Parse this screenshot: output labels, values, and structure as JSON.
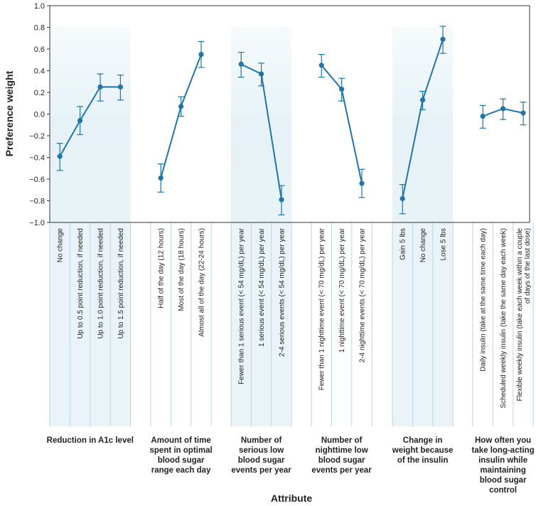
{
  "chart_data": {
    "type": "line",
    "title": "",
    "xlabel": "Attribute",
    "ylabel": "Preference weight",
    "ylim": [
      -1.0,
      1.0
    ],
    "yticks": [
      "1.0",
      "0.8",
      "0.6",
      "0.4",
      "0.2",
      "0.0",
      "−0.2",
      "−0.4",
      "−0.6",
      "−0.8",
      "−1.0"
    ],
    "ytick_values": [
      1.0,
      0.8,
      0.6,
      0.4,
      0.2,
      0.0,
      -0.2,
      -0.4,
      -0.6,
      -0.8,
      -1.0
    ],
    "colors": {
      "line": "#1f74a8",
      "band": "#e6f2f7"
    },
    "groups": [
      {
        "attribute_lines": [
          "Reduction in A1c level"
        ],
        "shaded": true,
        "levels": [
          {
            "label": "No change",
            "value": -0.39,
            "lower": -0.52,
            "upper": -0.27
          },
          {
            "label": "Up to 0.5 point reduction, if needed",
            "value": -0.06,
            "lower": -0.19,
            "upper": 0.07
          },
          {
            "label": "Up to 1.0 point reduction, if needed",
            "value": 0.25,
            "lower": 0.12,
            "upper": 0.37
          },
          {
            "label": "Up to 1.5 point reduction, if needed",
            "value": 0.25,
            "lower": 0.13,
            "upper": 0.36
          }
        ]
      },
      {
        "attribute_lines": [
          "Amount of time",
          "spent in optimal",
          "blood sugar",
          "range each day"
        ],
        "shaded": false,
        "levels": [
          {
            "label": "Half of the day (12 hours)",
            "value": -0.59,
            "lower": -0.72,
            "upper": -0.46
          },
          {
            "label": "Most of the day (18 hours)",
            "value": 0.07,
            "lower": -0.02,
            "upper": 0.16
          },
          {
            "label": "Almost all of the day (22-24 hours)",
            "value": 0.55,
            "lower": 0.43,
            "upper": 0.67
          }
        ]
      },
      {
        "attribute_lines": [
          "Number of",
          "serious low",
          "blood sugar",
          "events per year"
        ],
        "shaded": true,
        "levels": [
          {
            "label": "Fewer than 1 serious event (< 54 mg/dL) per year",
            "value": 0.46,
            "lower": 0.34,
            "upper": 0.57
          },
          {
            "label": "1 serious event (< 54 mg/dL) per year",
            "value": 0.37,
            "lower": 0.26,
            "upper": 0.47
          },
          {
            "label": "2-4 serious events (< 54 mg/dL) per year",
            "value": -0.79,
            "lower": -0.93,
            "upper": -0.66
          }
        ]
      },
      {
        "attribute_lines": [
          "Number of",
          "nighttime low",
          "blood sugar",
          "events per year"
        ],
        "shaded": false,
        "levels": [
          {
            "label": "Fewer than 1 nighttime event (< 70 mg/dL) per year",
            "value": 0.45,
            "lower": 0.34,
            "upper": 0.55
          },
          {
            "label": "1 nighttime event (< 70 mg/dL) per year",
            "value": 0.23,
            "lower": 0.12,
            "upper": 0.33
          },
          {
            "label": "2-4 nighttime events (< 70 mg/dL) per year",
            "value": -0.64,
            "lower": -0.77,
            "upper": -0.51
          }
        ]
      },
      {
        "attribute_lines": [
          "Change in",
          "weight because",
          "of the insulin"
        ],
        "shaded": true,
        "levels": [
          {
            "label": "Gain 5 lbs",
            "value": -0.78,
            "lower": -0.92,
            "upper": -0.65
          },
          {
            "label": "No change",
            "value": 0.13,
            "lower": 0.04,
            "upper": 0.21
          },
          {
            "label": "Lose 5 lbs",
            "value": 0.69,
            "lower": 0.56,
            "upper": 0.81
          }
        ]
      },
      {
        "attribute_lines": [
          "How often you",
          "take long-acting",
          "insulin while",
          "maintaining",
          "blood sugar",
          "control"
        ],
        "shaded": false,
        "levels": [
          {
            "label": "Daily insulin (take at the same time each day)",
            "value": -0.02,
            "lower": -0.13,
            "upper": 0.08
          },
          {
            "label": "Scheduled weekly insulin (take the same day each week)",
            "value": 0.05,
            "lower": -0.05,
            "upper": 0.14
          },
          {
            "label": "Flexible weekly insulin (take each week within a couple of days of the last dose)",
            "label_lines": [
              "Flexible weekly insulin (take each week within a couple",
              "of days of the last dose)"
            ],
            "value": 0.01,
            "lower": -0.1,
            "upper": 0.11
          }
        ]
      }
    ]
  }
}
